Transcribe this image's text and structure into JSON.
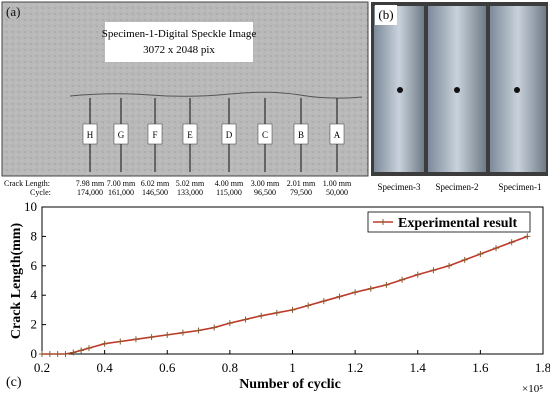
{
  "panel_a": {
    "label": "(a)",
    "title": "Specimen-1-Digital Speckle Image",
    "subtitle": "3072 x 2048 pix",
    "markers": [
      "H",
      "G",
      "F",
      "E",
      "D",
      "C",
      "B",
      "A"
    ],
    "crack_length_label": "Crack Length:",
    "cycle_label": "Cycle:",
    "crack_lengths": [
      "7.98 mm",
      "7.00 mm",
      "6.02 mm",
      "5.02 mm",
      "4.00 mm",
      "3.00 mm",
      "2.01 mm",
      "1.00 mm"
    ],
    "cycles": [
      "174,000",
      "161,000",
      "146,500",
      "133,000",
      "115,000",
      "96,500",
      "79,500",
      "50,000"
    ]
  },
  "panel_b": {
    "label": "(b)",
    "specimens": [
      "Specimen-3",
      "Specimen-2",
      "Specimen-1"
    ]
  },
  "chart_data": {
    "type": "line",
    "panel_label": "(c)",
    "x_label": "Number of cyclic",
    "y_label": "Crack Length(mm)",
    "x_multiplier": "×10⁵",
    "xlim": [
      0.2,
      1.8
    ],
    "ylim": [
      0,
      10
    ],
    "xticks": [
      0.2,
      0.4,
      0.6,
      0.8,
      1,
      1.2,
      1.4,
      1.6,
      1.8
    ],
    "yticks": [
      0,
      2,
      4,
      6,
      8,
      10
    ],
    "legend_position": "upper right",
    "x": [
      0.2,
      0.225,
      0.25,
      0.275,
      0.3,
      0.325,
      0.35,
      0.4,
      0.45,
      0.5,
      0.55,
      0.6,
      0.65,
      0.7,
      0.75,
      0.8,
      0.85,
      0.9,
      0.95,
      1.0,
      1.05,
      1.1,
      1.15,
      1.2,
      1.25,
      1.3,
      1.35,
      1.4,
      1.45,
      1.5,
      1.55,
      1.6,
      1.65,
      1.7,
      1.75
    ],
    "series": [
      {
        "name": "Experimental result",
        "color": "#c0392b",
        "marker_color": "#8b5a2b",
        "values": [
          0,
          0,
          0,
          0,
          0.1,
          0.25,
          0.4,
          0.7,
          0.85,
          1.0,
          1.15,
          1.3,
          1.45,
          1.6,
          1.8,
          2.1,
          2.35,
          2.6,
          2.8,
          3.0,
          3.3,
          3.6,
          3.9,
          4.2,
          4.45,
          4.7,
          5.05,
          5.4,
          5.7,
          6.0,
          6.4,
          6.8,
          7.2,
          7.6,
          8.0
        ]
      }
    ]
  }
}
